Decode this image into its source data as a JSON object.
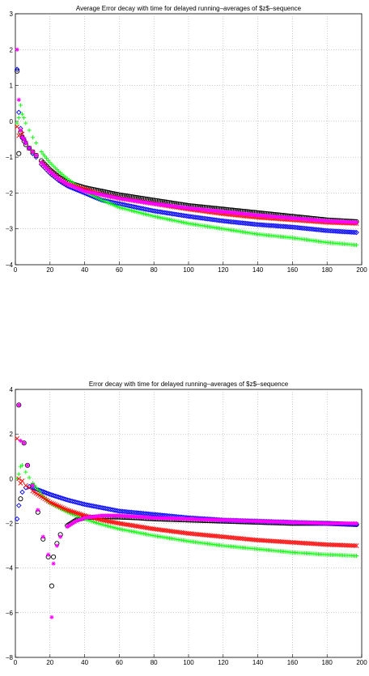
{
  "chart_data": [
    {
      "type": "scatter",
      "title": "Average Error decay with time for delayed running–averages of $z$–sequence",
      "xlabel": "",
      "ylabel": "",
      "xlim": [
        0,
        200
      ],
      "ylim": [
        -4,
        3
      ],
      "xticks": [
        "0",
        "20",
        "40",
        "60",
        "80",
        "100",
        "120",
        "140",
        "160",
        "180",
        "200"
      ],
      "yticks": [
        "−4",
        "−3",
        "−2",
        "−1",
        "0",
        "1",
        "2",
        "3"
      ],
      "grid": true,
      "series": [
        {
          "color": "#000000",
          "marker": "circle",
          "x": [
            1,
            2,
            3,
            4,
            5,
            6,
            8,
            10,
            12,
            15,
            20,
            25,
            30,
            40,
            50,
            60,
            80,
            100,
            120,
            140,
            160,
            180,
            197
          ],
          "y": [
            1.4,
            -0.9,
            -0.3,
            -0.45,
            -0.55,
            -0.65,
            -0.75,
            -0.85,
            -0.95,
            -1.1,
            -1.35,
            -1.55,
            -1.7,
            -1.85,
            -1.95,
            -2.05,
            -2.2,
            -2.35,
            -2.45,
            -2.55,
            -2.65,
            -2.75,
            -2.8
          ]
        },
        {
          "color": "#0000ff",
          "marker": "diamond",
          "x": [
            1,
            2,
            3,
            4,
            5,
            6,
            8,
            10,
            12,
            15,
            20,
            25,
            30,
            40,
            50,
            60,
            80,
            100,
            120,
            140,
            160,
            180,
            197
          ],
          "y": [
            1.45,
            0.25,
            -0.2,
            -0.45,
            -0.5,
            -0.6,
            -0.75,
            -0.9,
            -1.0,
            -1.2,
            -1.45,
            -1.65,
            -1.8,
            -2.0,
            -2.2,
            -2.3,
            -2.5,
            -2.65,
            -2.78,
            -2.88,
            -2.95,
            -3.05,
            -3.1
          ]
        },
        {
          "color": "#00ff00",
          "marker": "plus",
          "x": [
            1,
            2,
            3,
            4,
            5,
            6,
            8,
            10,
            12,
            15,
            20,
            25,
            30,
            40,
            50,
            60,
            80,
            100,
            120,
            140,
            160,
            180,
            197
          ],
          "y": [
            -0.05,
            0.1,
            0.45,
            0.2,
            0.1,
            -0.05,
            -0.25,
            -0.45,
            -0.6,
            -0.85,
            -1.15,
            -1.4,
            -1.6,
            -1.95,
            -2.2,
            -2.4,
            -2.65,
            -2.85,
            -3.0,
            -3.15,
            -3.25,
            -3.38,
            -3.45
          ]
        },
        {
          "color": "#ff0000",
          "marker": "x",
          "x": [
            1,
            2,
            3,
            4,
            5,
            6,
            8,
            10,
            12,
            15,
            20,
            25,
            30,
            40,
            50,
            60,
            80,
            100,
            120,
            140,
            160,
            180,
            197
          ],
          "y": [
            -0.15,
            -0.4,
            -0.25,
            -0.35,
            -0.5,
            -0.6,
            -0.75,
            -0.85,
            -0.95,
            -1.15,
            -1.4,
            -1.6,
            -1.75,
            -1.9,
            -2.05,
            -2.15,
            -2.3,
            -2.45,
            -2.58,
            -2.68,
            -2.75,
            -2.82,
            -2.85
          ]
        },
        {
          "color": "#ff00ff",
          "marker": "star",
          "x": [
            1,
            2,
            3,
            4,
            5,
            6,
            8,
            10,
            12,
            15,
            20,
            25,
            30,
            40,
            50,
            60,
            80,
            100,
            120,
            140,
            160,
            180,
            197
          ],
          "y": [
            2.0,
            0.6,
            -0.25,
            -0.45,
            -0.5,
            -0.6,
            -0.75,
            -0.85,
            -0.95,
            -1.15,
            -1.4,
            -1.6,
            -1.75,
            -1.95,
            -2.05,
            -2.15,
            -2.3,
            -2.42,
            -2.52,
            -2.62,
            -2.7,
            -2.78,
            -2.82
          ]
        }
      ]
    },
    {
      "type": "scatter",
      "title": "Error decay with time for delayed running–averages of $z$–sequence",
      "xlabel": "",
      "ylabel": "",
      "xlim": [
        0,
        200
      ],
      "ylim": [
        -8,
        4
      ],
      "xticks": [
        "0",
        "20",
        "40",
        "60",
        "80",
        "100",
        "120",
        "140",
        "160",
        "180",
        "200"
      ],
      "yticks": [
        "−8",
        "−6",
        "−4",
        "−2",
        "0",
        "2",
        "4"
      ],
      "grid": true,
      "series": [
        {
          "color": "#000000",
          "marker": "circle",
          "x": [
            2,
            3,
            5,
            7,
            10,
            13,
            16,
            19,
            21,
            22,
            24,
            26,
            30,
            35,
            40,
            50,
            60,
            70,
            80,
            100,
            120,
            140,
            160,
            180,
            197
          ],
          "y": [
            3.3,
            -0.9,
            1.6,
            0.6,
            -0.3,
            -1.5,
            -2.7,
            -3.5,
            -4.8,
            -3.5,
            -2.9,
            -2.5,
            -2.1,
            -1.85,
            -1.75,
            -1.7,
            -1.72,
            -1.75,
            -1.8,
            -1.85,
            -1.9,
            -1.95,
            -2.0,
            -2.0,
            -2.05
          ]
        },
        {
          "color": "#0000ff",
          "marker": "diamond",
          "x": [
            1,
            2,
            4,
            6,
            8,
            10,
            15,
            20,
            30,
            40,
            50,
            60,
            80,
            100,
            120,
            140,
            160,
            180,
            197
          ],
          "y": [
            -1.8,
            -1.2,
            -0.6,
            -0.4,
            -0.35,
            -0.4,
            -0.55,
            -0.7,
            -0.95,
            -1.15,
            -1.3,
            -1.45,
            -1.6,
            -1.75,
            -1.85,
            -1.9,
            -1.95,
            -2.0,
            -2.05
          ]
        },
        {
          "color": "#00ff00",
          "marker": "plus",
          "x": [
            1,
            2,
            3,
            4,
            6,
            8,
            10,
            15,
            20,
            30,
            40,
            50,
            60,
            80,
            100,
            120,
            140,
            160,
            180,
            197
          ],
          "y": [
            0.0,
            0.2,
            0.55,
            0.6,
            0.3,
            0.05,
            -0.2,
            -0.7,
            -1.1,
            -1.5,
            -1.8,
            -2.05,
            -2.25,
            -2.55,
            -2.8,
            -3.0,
            -3.15,
            -3.3,
            -3.4,
            -3.45
          ]
        },
        {
          "color": "#ff0000",
          "marker": "x",
          "x": [
            1,
            2,
            3,
            4,
            6,
            8,
            10,
            15,
            20,
            30,
            40,
            50,
            60,
            80,
            100,
            120,
            140,
            160,
            180,
            197
          ],
          "y": [
            1.8,
            0.0,
            -0.2,
            -0.1,
            -0.3,
            -0.4,
            -0.55,
            -0.8,
            -1.05,
            -1.4,
            -1.65,
            -1.85,
            -2.0,
            -2.25,
            -2.45,
            -2.6,
            -2.75,
            -2.85,
            -2.95,
            -3.0
          ]
        },
        {
          "color": "#ff00ff",
          "marker": "star",
          "x": [
            2,
            3,
            5,
            7,
            10,
            13,
            16,
            19,
            21,
            22,
            24,
            26,
            30,
            35,
            40,
            50,
            60,
            70,
            80,
            100,
            120,
            140,
            160,
            180,
            197
          ],
          "y": [
            3.3,
            1.7,
            1.6,
            0.6,
            -0.3,
            -1.4,
            -2.6,
            -3.4,
            -6.2,
            -3.8,
            -3.0,
            -2.6,
            -2.15,
            -1.9,
            -1.75,
            -1.65,
            -1.65,
            -1.7,
            -1.75,
            -1.8,
            -1.85,
            -1.9,
            -1.95,
            -2.0,
            -2.0
          ]
        }
      ]
    }
  ]
}
